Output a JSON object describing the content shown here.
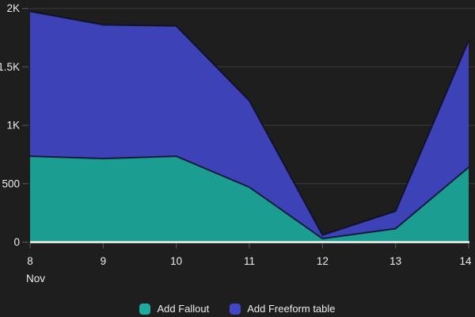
{
  "chart_data": {
    "type": "area",
    "stacked": true,
    "title": "",
    "xlabel": "Nov",
    "ylabel": "",
    "categories": [
      "8",
      "9",
      "10",
      "11",
      "12",
      "13",
      "14"
    ],
    "series": [
      {
        "name": "Add Fallout",
        "color": "#1CAB9E",
        "values": [
          735,
          715,
          735,
          470,
          30,
          115,
          640
        ]
      },
      {
        "name": "Add Freeform table",
        "color": "#4146C8",
        "values": [
          1240,
          1145,
          1115,
          740,
          30,
          150,
          1085
        ]
      }
    ],
    "stacked_totals": [
      1975,
      1860,
      1850,
      1210,
      60,
      265,
      1725
    ],
    "ylim": [
      0,
      2000
    ],
    "y_ticks": [
      {
        "value": 0,
        "label": "0"
      },
      {
        "value": 500,
        "label": "500"
      },
      {
        "value": 1000,
        "label": "1K"
      },
      {
        "value": 1500,
        "label": "1.5K"
      },
      {
        "value": 2000,
        "label": "2K"
      }
    ],
    "grid": "horizontal",
    "legend_position": "bottom",
    "colors": {
      "background": "#1E1E1E",
      "gridline": "#3A3A3A",
      "axis_baseline": "#F5F5F5",
      "tick": "#5A5A5A",
      "label": "#ECECEC",
      "edge_stroke": "#0B0B20"
    }
  }
}
